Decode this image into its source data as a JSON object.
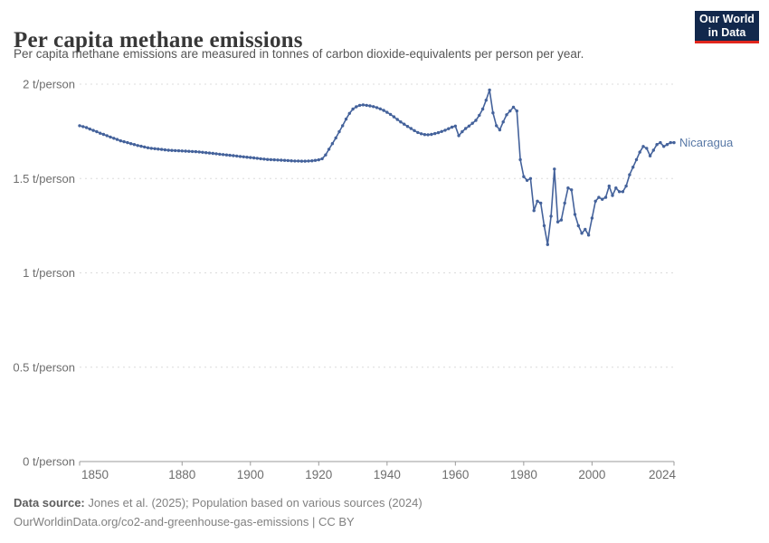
{
  "header": {
    "title": "Per capita methane emissions",
    "subtitle": "Per capita methane emissions are measured in tonnes of carbon dioxide-equivalents per person per year.",
    "logo": {
      "line1": "Our World",
      "line2": "in Data"
    }
  },
  "footer": {
    "source_label": "Data source:",
    "source_text": " Jones et al. (2025); Population based on various sources (2024)",
    "note_text": "OurWorldinData.org/co2-and-greenhouse-gas-emissions | CC BY"
  },
  "colors": {
    "line": "#44629B",
    "series_label": "#5878A6",
    "grid": "#dcdcdc",
    "axis": "#9b9b9b",
    "tick_text": "#6e6e6e",
    "logo_bg": "#12284C",
    "logo_red": "#E1261D"
  },
  "chart_data": {
    "type": "line",
    "title": "Per capita methane emissions",
    "unit": "t/person",
    "xlim": [
      1850,
      2024
    ],
    "ylim": [
      0,
      2
    ],
    "grid": "horizontal dashed",
    "legend_position": "end-of-line label",
    "x_ticks": [
      1850,
      1880,
      1900,
      1920,
      1940,
      1960,
      1980,
      2000,
      2024
    ],
    "y_ticks": [
      0,
      0.5,
      1,
      1.5,
      2
    ],
    "y_tick_labels": [
      "0 t/person",
      "0.5 t/person",
      "1 t/person",
      "1.5 t/person",
      "2 t/person"
    ],
    "series": [
      {
        "name": "Nicaragua",
        "start_year": 1850,
        "end_year": 2024,
        "values": [
          1.78,
          1.775,
          1.77,
          1.762,
          1.755,
          1.748,
          1.74,
          1.734,
          1.727,
          1.72,
          1.713,
          1.707,
          1.7,
          1.695,
          1.69,
          1.685,
          1.68,
          1.675,
          1.671,
          1.667,
          1.663,
          1.66,
          1.658,
          1.656,
          1.654,
          1.652,
          1.65,
          1.649,
          1.648,
          1.647,
          1.646,
          1.645,
          1.644,
          1.643,
          1.642,
          1.641,
          1.639,
          1.637,
          1.635,
          1.633,
          1.631,
          1.629,
          1.627,
          1.625,
          1.623,
          1.621,
          1.619,
          1.617,
          1.615,
          1.613,
          1.611,
          1.609,
          1.607,
          1.605,
          1.603,
          1.601,
          1.6,
          1.599,
          1.598,
          1.597,
          1.596,
          1.595,
          1.594,
          1.593,
          1.593,
          1.592,
          1.592,
          1.593,
          1.594,
          1.596,
          1.599,
          1.605,
          1.625,
          1.655,
          1.685,
          1.715,
          1.748,
          1.78,
          1.815,
          1.845,
          1.868,
          1.88,
          1.888,
          1.89,
          1.888,
          1.885,
          1.881,
          1.876,
          1.869,
          1.861,
          1.851,
          1.84,
          1.827,
          1.813,
          1.8,
          1.788,
          1.776,
          1.765,
          1.754,
          1.744,
          1.737,
          1.733,
          1.732,
          1.734,
          1.738,
          1.743,
          1.749,
          1.756,
          1.764,
          1.772,
          1.778,
          1.727,
          1.748,
          1.765,
          1.778,
          1.793,
          1.808,
          1.835,
          1.868,
          1.915,
          1.969,
          1.848,
          1.78,
          1.758,
          1.8,
          1.838,
          1.858,
          1.878,
          1.858,
          1.6,
          1.51,
          1.49,
          1.5,
          1.33,
          1.38,
          1.37,
          1.25,
          1.15,
          1.3,
          1.55,
          1.27,
          1.28,
          1.37,
          1.45,
          1.44,
          1.31,
          1.25,
          1.21,
          1.23,
          1.2,
          1.29,
          1.38,
          1.4,
          1.39,
          1.4,
          1.46,
          1.41,
          1.45,
          1.43,
          1.43,
          1.46,
          1.52,
          1.56,
          1.6,
          1.64,
          1.67,
          1.66,
          1.62,
          1.65,
          1.68,
          1.69,
          1.67,
          1.68,
          1.69,
          1.69
        ]
      }
    ]
  }
}
